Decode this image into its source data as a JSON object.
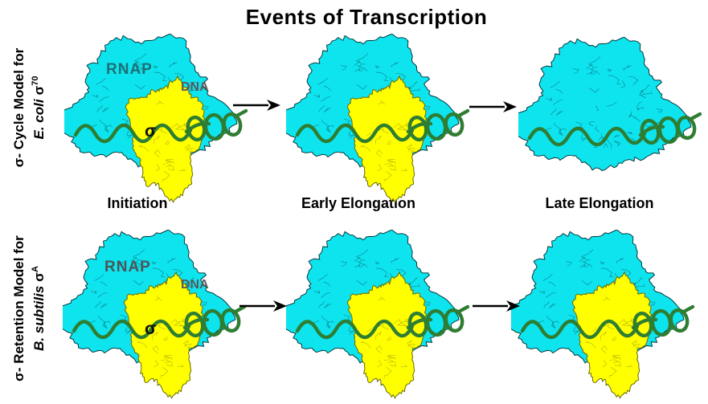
{
  "title": "Events of Transcription",
  "row_labels": [
    {
      "line1": "σ- Cycle Model for",
      "species": "E. coli",
      "sigma": "σ",
      "sup": "70"
    },
    {
      "line1": "σ- Retention Model for",
      "species": "B. subtilis",
      "sigma": "σ",
      "sup": "A"
    }
  ],
  "stage_labels": [
    "Initiation",
    "Early Elongation",
    "Late Elongation"
  ],
  "molecule_labels": {
    "rnap": "RNAP",
    "dna": "DNA",
    "sigma": "σ"
  },
  "colors": {
    "rnap_fill": "#0EE4EE",
    "sigma_fill": "#FFFF00",
    "dna_green": "#2E7D32",
    "outline": "#063A40",
    "sigma_outline": "#6B6B00",
    "arrow": "#000000"
  }
}
